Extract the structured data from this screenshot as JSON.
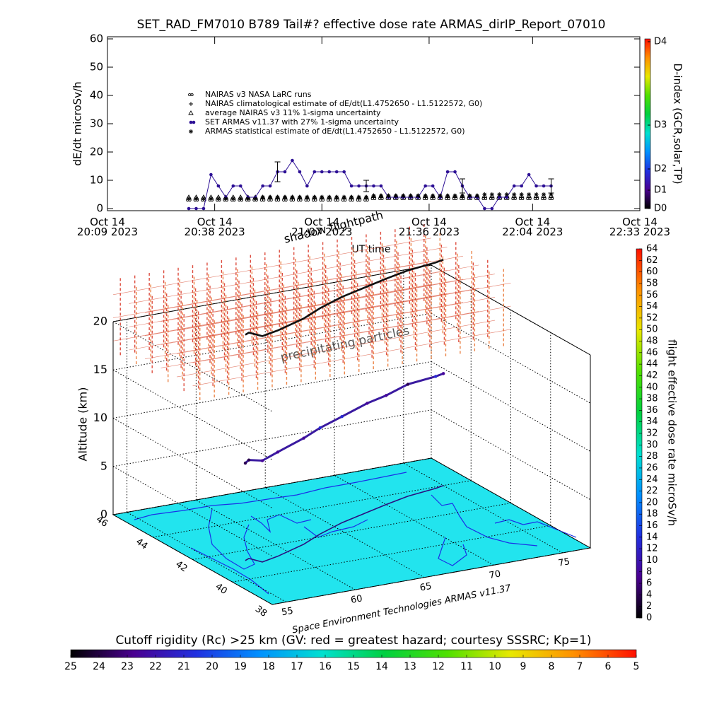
{
  "chart_data": [
    {
      "type": "scatter",
      "title": "SET_RAD_FM7010  B789 Tail#? effective dose rate ARMAS_dirIP_Report_07010",
      "y_label": "dE/dt microSv/h",
      "x_label": "UT time",
      "xlim": [
        "20:09",
        "22:33"
      ],
      "xticks": [
        {
          "value": "20:09",
          "label": "Oct 14\n20:09 2023"
        },
        {
          "value": "20:38",
          "label": "Oct 14\n20:38 2023"
        },
        {
          "value": "21:07",
          "label": "Oct 14\n21:07 2023"
        },
        {
          "value": "21:36",
          "label": "Oct 14\n21:36 2023"
        },
        {
          "value": "22:04",
          "label": "Oct 14\n22:04 2023"
        },
        {
          "value": "22:33",
          "label": "Oct 14\n22:33 2023"
        }
      ],
      "ylim": [
        0,
        60
      ],
      "yticks": [
        0,
        10,
        20,
        30,
        40,
        50,
        60
      ],
      "y2_label": "D-index (GCR,solar,TP)",
      "y2lim": [
        0,
        60
      ],
      "y2ticks": [
        {
          "value": 0,
          "label": "D0"
        },
        {
          "value": 6.5,
          "label": "D1"
        },
        {
          "value": 14,
          "label": "D2"
        },
        {
          "value": 29.5,
          "label": "D3"
        },
        {
          "value": 59,
          "label": "D4"
        }
      ],
      "colormap": [
        "#000000",
        "#4a0090",
        "#2030e0",
        "#0090ff",
        "#00e0d0",
        "#00d040",
        "#50e000",
        "#e8e800",
        "#ff9000",
        "#ff1000"
      ],
      "legend": "upper left",
      "x": [
        "20:31",
        "20:33",
        "20:35",
        "20:37",
        "20:39",
        "20:41",
        "20:43",
        "20:45",
        "20:47",
        "20:49",
        "20:51",
        "20:53",
        "20:55",
        "20:57",
        "20:59",
        "21:01",
        "21:03",
        "21:05",
        "21:07",
        "21:09",
        "21:11",
        "21:13",
        "21:15",
        "21:17",
        "21:19",
        "21:21",
        "21:23",
        "21:25",
        "21:27",
        "21:29",
        "21:31",
        "21:33",
        "21:35",
        "21:37",
        "21:39",
        "21:41",
        "21:43",
        "21:45",
        "21:47",
        "21:49",
        "21:51",
        "21:53",
        "21:55",
        "21:57",
        "21:59",
        "22:01",
        "22:03",
        "22:05",
        "22:07",
        "22:09"
      ],
      "series": [
        {
          "name": "NAIRAS v3 NASA LaRC runs",
          "marker": "circle2",
          "color": "#000000",
          "values": [
            3,
            3,
            3,
            3,
            3,
            3,
            3,
            3,
            3,
            3,
            3,
            3,
            3,
            3,
            3,
            3,
            3,
            3,
            3,
            3,
            3,
            3,
            3,
            3,
            3,
            3.5,
            3.5,
            3.5,
            3.5,
            3.5,
            3.5,
            3.5,
            3.5,
            3.5,
            3.5,
            3.5,
            3.5,
            3.5,
            3.5,
            3.5,
            3.5,
            3.5,
            3.5,
            3.5,
            3.5,
            3.5,
            3.5,
            3.5,
            3.5,
            3.5
          ]
        },
        {
          "name": "NAIRAS climatological estimate of dE/dt(L1.4752650 - L1.5122572, G0)",
          "marker": "plus",
          "color": "#000000",
          "values": [
            3.5,
            3.5,
            3.5,
            3.5,
            3.5,
            3.5,
            3.5,
            3.5,
            3.5,
            3.5,
            3.5,
            3.5,
            3.5,
            3.5,
            3.5,
            3.5,
            3.5,
            3.5,
            3.5,
            3.5,
            3.5,
            3.5,
            3.5,
            3.5,
            3.5,
            4,
            4,
            4,
            4,
            4,
            4,
            4,
            4,
            4,
            4,
            4,
            4,
            4,
            4,
            4,
            4,
            4,
            4,
            4,
            4,
            4,
            4,
            4,
            4,
            4
          ]
        },
        {
          "name": "average NAIRAS v3 11% 1-sigma uncertainty",
          "marker": "triangle",
          "color": "#000000",
          "values": [
            4,
            4,
            4,
            4,
            4,
            4,
            4,
            4,
            4,
            4,
            4,
            4,
            4,
            4,
            4,
            4,
            4,
            4,
            4,
            4,
            4,
            4,
            4,
            4,
            4,
            4.5,
            4.5,
            4.5,
            4.5,
            4.5,
            4.5,
            4.5,
            4.5,
            4.5,
            4.5,
            4.5,
            4.5,
            4.5,
            4.5,
            4.5,
            4.5,
            4.5,
            4.5,
            4.5,
            4.5,
            4.5,
            4.5,
            4.5,
            4.5,
            4.5
          ]
        },
        {
          "name": "SET ARMAS v11.37 with 27% 1-sigma uncertainty",
          "marker": "dot",
          "color": "#2c0f95",
          "values": [
            0,
            0,
            0,
            12,
            8,
            4,
            8,
            8,
            4,
            4,
            8,
            8,
            13,
            13,
            17,
            13,
            8,
            13,
            13,
            13,
            13,
            13,
            8,
            8,
            8,
            8,
            8,
            4,
            4,
            4,
            4,
            4,
            8,
            8,
            4,
            13,
            13,
            8,
            4,
            4,
            0,
            0,
            4,
            4,
            8,
            8,
            12,
            8,
            8,
            8
          ],
          "errors": [
            null,
            null,
            null,
            null,
            null,
            null,
            null,
            null,
            null,
            null,
            null,
            null,
            3.5,
            null,
            null,
            null,
            null,
            null,
            null,
            null,
            null,
            null,
            null,
            null,
            2,
            null,
            null,
            null,
            null,
            null,
            null,
            null,
            null,
            null,
            null,
            null,
            null,
            2.5,
            null,
            null,
            null,
            null,
            null,
            null,
            null,
            null,
            null,
            null,
            null,
            2.5
          ]
        },
        {
          "name": "ARMAS statistical estimate of dE/dt(L1.4752650 - L1.5122572, G0)",
          "marker": "asterisk",
          "color": "#000000",
          "values": [
            3.5,
            3.5,
            3.5,
            3.5,
            3.5,
            3.5,
            3.5,
            3.5,
            3.5,
            3.5,
            4,
            4,
            4,
            4,
            4,
            4,
            4,
            4,
            4,
            4,
            4,
            4,
            4,
            4,
            4,
            4.5,
            4.5,
            4.5,
            4.5,
            4.5,
            4.5,
            4.5,
            4.5,
            4.5,
            4.5,
            4.5,
            4.5,
            4.5,
            4.5,
            4.5,
            5,
            5,
            5,
            5,
            5,
            5,
            5,
            5,
            5,
            5
          ]
        }
      ]
    },
    {
      "type": "path3d",
      "z_label": "Altitude (km)",
      "xlim": [
        54,
        77
      ],
      "xticks": [
        55,
        60,
        65,
        70,
        75
      ],
      "ylim": [
        38,
        46
      ],
      "yticks": [
        38,
        40,
        42,
        44,
        46
      ],
      "zlim": [
        0,
        20
      ],
      "zticks": [
        0,
        5,
        10,
        15,
        20
      ],
      "lon": [
        56.8,
        57.2,
        57.6,
        59.0,
        61.6,
        63.5,
        65.8,
        68.2,
        70.0,
        72.0,
        74.3,
        75.0
      ],
      "lat": [
        41.3,
        41.4,
        41.0,
        41.2,
        41.7,
        42.2,
        42.7,
        43.1,
        43.4,
        43.7,
        43.9,
        44.0
      ],
      "alt": [
        10.1,
        10.2,
        10.5,
        10.8,
        11.0,
        11.0,
        11.0,
        11.3,
        11.3,
        11.6,
        11.6,
        11.6
      ],
      "values": [
        4,
        4,
        8,
        8,
        8,
        13,
        13,
        8,
        8,
        4,
        13,
        8
      ],
      "floor_color": "#22e4ee",
      "annotations": [
        "shadow flightpath",
        "precipitating particles",
        "Space Environment Technologies ARMAS v11.37"
      ],
      "colormap": [
        "#000000",
        "#4a0090",
        "#2030e0",
        "#0090ff",
        "#00e0d0",
        "#00d040",
        "#50e000",
        "#e8e800",
        "#ff9000",
        "#ff1000"
      ],
      "colorbar": {
        "label": "flight effective dose rate microSv/h",
        "lim": [
          0,
          64
        ],
        "ticks": [
          0,
          2,
          4,
          6,
          8,
          10,
          12,
          14,
          16,
          18,
          20,
          22,
          24,
          26,
          28,
          30,
          32,
          34,
          36,
          38,
          40,
          42,
          44,
          46,
          48,
          50,
          52,
          54,
          56,
          58,
          60,
          62,
          64
        ]
      },
      "rigidity_colorbar": {
        "label": "Cutoff rigidity (Rc) >25 km (GV: red = greatest hazard; courtesy SSSRC; Kp=1)",
        "lim": [
          25,
          5
        ],
        "ticks": [
          25,
          24,
          23,
          22,
          21,
          20,
          19,
          18,
          17,
          16,
          15,
          14,
          13,
          12,
          11,
          10,
          9,
          8,
          7,
          6,
          5
        ]
      }
    }
  ]
}
